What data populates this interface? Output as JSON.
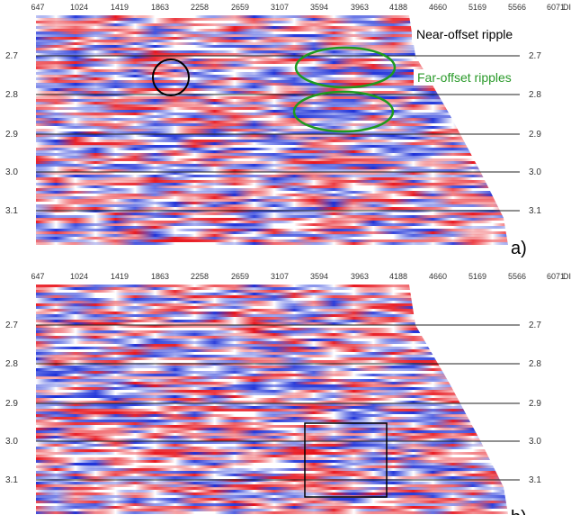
{
  "axis_unit": "DIST",
  "panels": [
    {
      "label": "a)",
      "x_labels": [
        "647",
        "1024",
        "1419",
        "1863",
        "2258",
        "2659",
        "3107",
        "3594",
        "3963",
        "4188",
        "4660",
        "5169",
        "5566",
        "6071"
      ],
      "y_labels": [
        "2.7",
        "2.8",
        "2.9",
        "3.0",
        "3.1"
      ],
      "annotations": [
        "Near-offset ripple",
        "Far-offset ripples"
      ]
    },
    {
      "label": "b)",
      "x_labels": [
        "647",
        "1024",
        "1419",
        "1863",
        "2258",
        "2659",
        "3107",
        "3594",
        "3963",
        "4188",
        "4660",
        "5169",
        "5566",
        "6071"
      ],
      "y_labels": [
        "2.7",
        "2.8",
        "2.9",
        "3.0",
        "3.1"
      ],
      "annotations": []
    }
  ]
}
